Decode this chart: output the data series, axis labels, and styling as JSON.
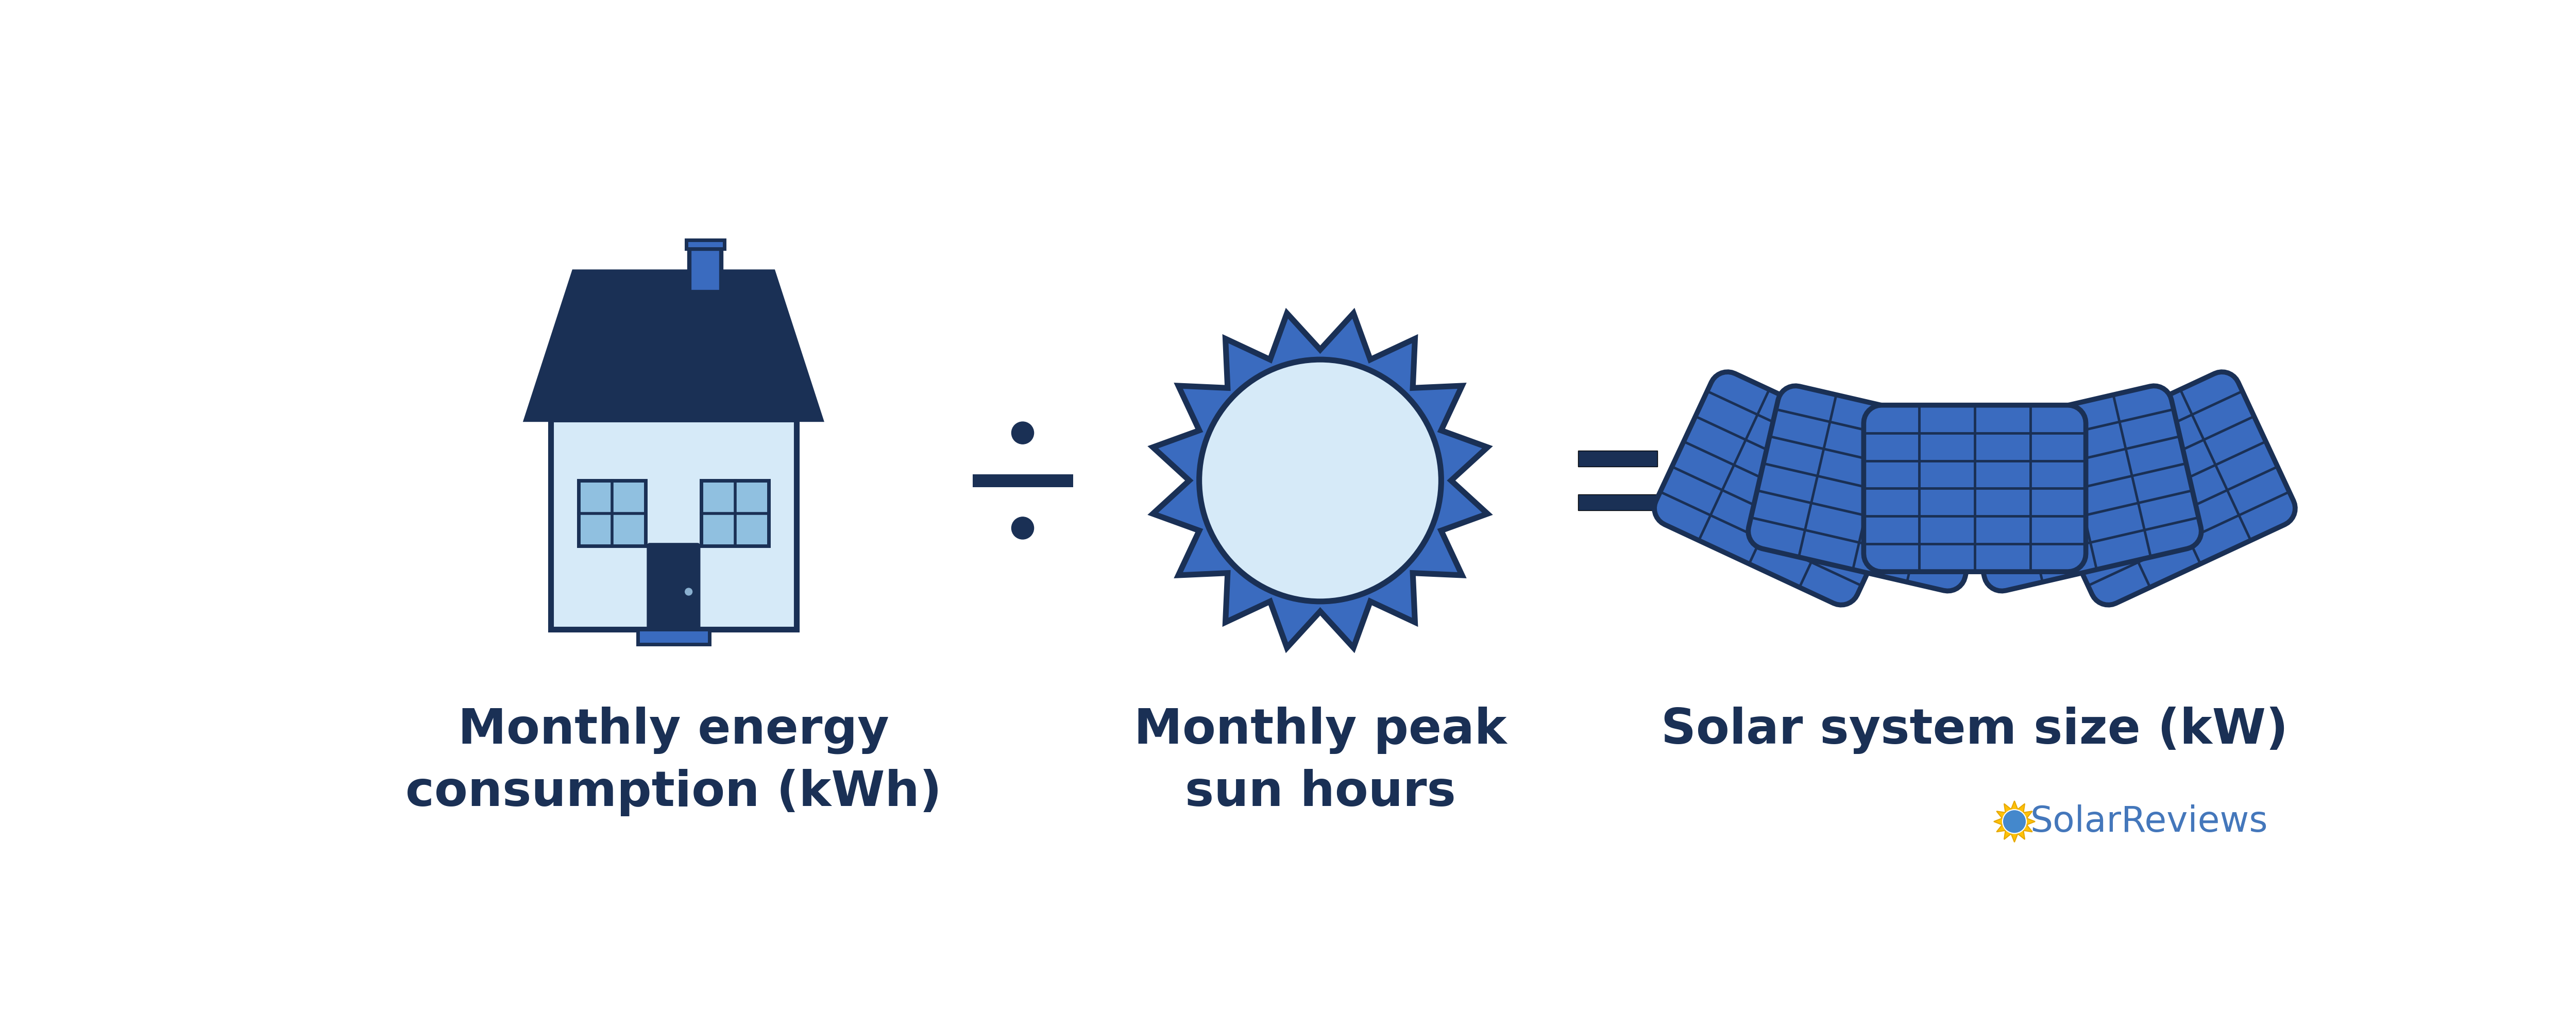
{
  "bg_color": "#ffffff",
  "dark_blue": "#1a3055",
  "medium_blue": "#3a6bbf",
  "light_blue": "#d6eaf8",
  "panel_blue": "#3a6bbf",
  "roof_color": "#1a3055",
  "wall_color": "#d6eaf8",
  "window_color": "#90c0e0",
  "label1": "Monthly energy\nconsumption (kWh)",
  "label2": "Monthly peak\nsun hours",
  "label3": "Solar system size (kW)",
  "brand": "SolarReviews",
  "label_color": "#1a3055",
  "label_fontsize": 68,
  "brand_fontsize": 50,
  "div_color": "#1a3055",
  "eq_color": "#1a3055"
}
